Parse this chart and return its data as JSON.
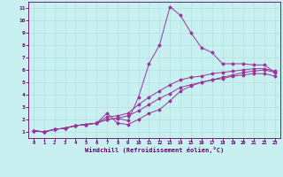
{
  "background_color": "#c8f0f0",
  "line_color": "#993399",
  "grid_color": "#aadddd",
  "xlabel": "Windchill (Refroidissement éolien,°C)",
  "xlabel_color": "#660066",
  "tick_color": "#660066",
  "xlim": [
    -0.5,
    23.5
  ],
  "ylim": [
    0.5,
    11.5
  ],
  "xticks": [
    0,
    1,
    2,
    3,
    4,
    5,
    6,
    7,
    8,
    9,
    10,
    11,
    12,
    13,
    14,
    15,
    16,
    17,
    18,
    19,
    20,
    21,
    22,
    23
  ],
  "yticks": [
    1,
    2,
    3,
    4,
    5,
    6,
    7,
    8,
    9,
    10,
    11
  ],
  "line1_x": [
    0,
    1,
    2,
    3,
    4,
    5,
    6,
    7,
    8,
    9,
    10,
    11,
    12,
    13,
    14,
    15,
    16,
    17,
    18,
    19,
    20,
    21,
    22,
    23
  ],
  "line1_y": [
    1.1,
    1.0,
    1.2,
    1.3,
    1.5,
    1.6,
    1.7,
    2.0,
    2.1,
    1.9,
    3.8,
    6.5,
    8.0,
    11.1,
    10.4,
    9.0,
    7.8,
    7.4,
    6.5,
    6.5,
    6.5,
    6.4,
    6.4,
    5.8
  ],
  "line2_x": [
    0,
    1,
    2,
    3,
    4,
    5,
    6,
    7,
    8,
    9,
    10,
    11,
    12,
    13,
    14,
    15,
    16,
    17,
    18,
    19,
    20,
    21,
    22,
    23
  ],
  "line2_y": [
    1.1,
    1.0,
    1.2,
    1.3,
    1.5,
    1.6,
    1.7,
    2.5,
    1.7,
    1.6,
    2.0,
    2.5,
    2.8,
    3.5,
    4.3,
    4.7,
    5.0,
    5.2,
    5.4,
    5.6,
    5.8,
    5.9,
    6.0,
    5.8
  ],
  "line3_x": [
    0,
    1,
    2,
    3,
    4,
    5,
    6,
    7,
    8,
    9,
    10,
    11,
    12,
    13,
    14,
    15,
    16,
    17,
    18,
    19,
    20,
    21,
    22,
    23
  ],
  "line3_y": [
    1.1,
    1.0,
    1.2,
    1.3,
    1.5,
    1.6,
    1.7,
    2.2,
    2.3,
    2.5,
    3.2,
    3.8,
    4.3,
    4.8,
    5.2,
    5.4,
    5.5,
    5.7,
    5.8,
    5.9,
    6.0,
    6.1,
    6.1,
    5.9
  ],
  "line4_x": [
    0,
    1,
    2,
    3,
    4,
    5,
    6,
    7,
    8,
    9,
    10,
    11,
    12,
    13,
    14,
    15,
    16,
    17,
    18,
    19,
    20,
    21,
    22,
    23
  ],
  "line4_y": [
    1.1,
    1.0,
    1.2,
    1.3,
    1.5,
    1.6,
    1.7,
    2.0,
    2.1,
    2.3,
    2.7,
    3.2,
    3.7,
    4.1,
    4.6,
    4.8,
    5.0,
    5.2,
    5.3,
    5.5,
    5.6,
    5.7,
    5.7,
    5.5
  ]
}
